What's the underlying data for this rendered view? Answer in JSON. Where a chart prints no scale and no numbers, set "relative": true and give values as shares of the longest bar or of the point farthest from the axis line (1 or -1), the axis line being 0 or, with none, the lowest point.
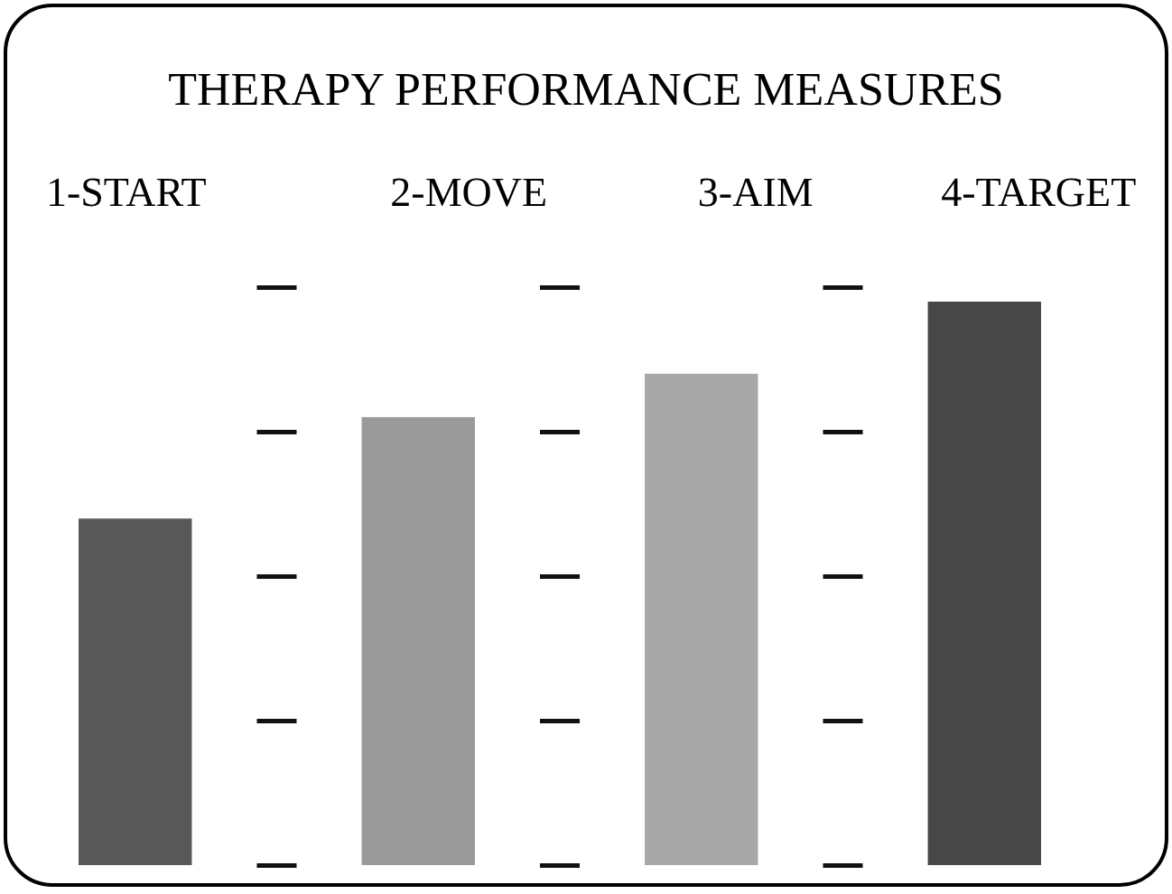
{
  "chart_data": {
    "type": "bar",
    "title": "THERAPY PERFORMANCE MEASURES",
    "relative": true,
    "categories": [
      "1-START",
      "2-MOVE",
      "3-AIM",
      "4-TARGET"
    ],
    "values": [
      0.615,
      0.795,
      0.872,
      1
    ],
    "colors": [
      "#585858",
      "#9a9a9a",
      "#a8a8a8",
      "#474747"
    ]
  }
}
